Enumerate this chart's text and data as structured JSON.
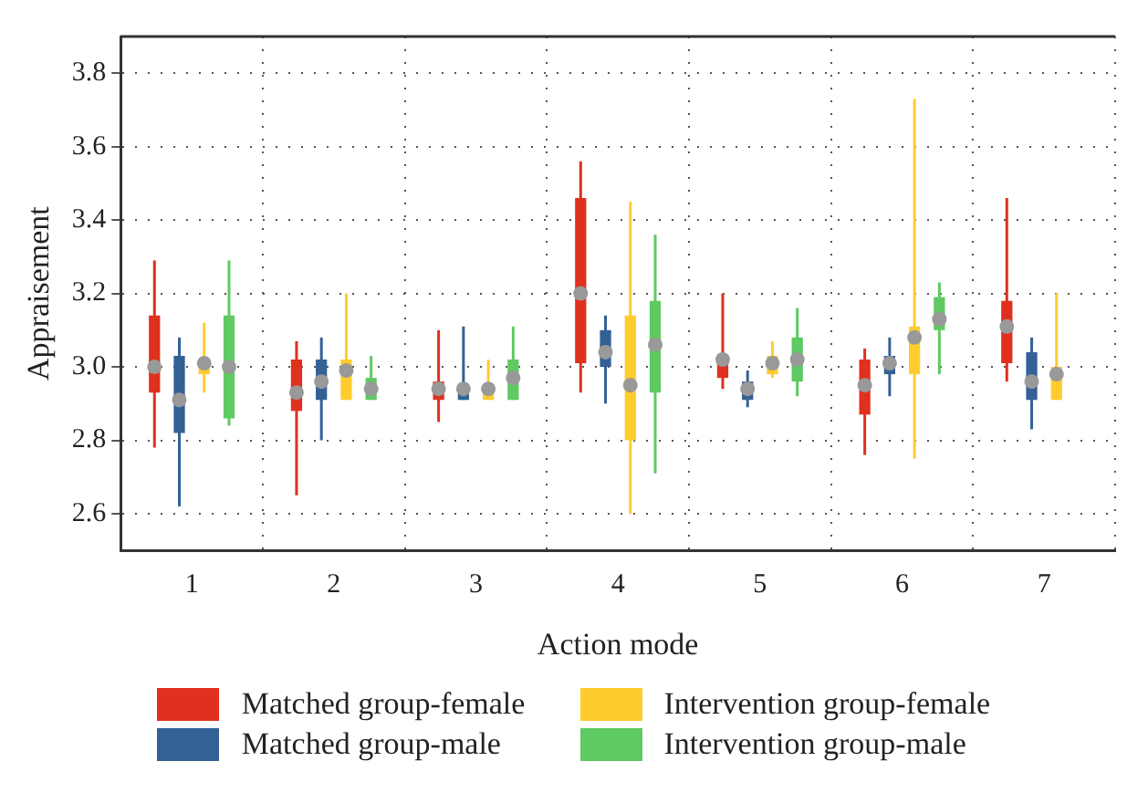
{
  "chart_data": {
    "type": "box",
    "xlabel": "Action mode",
    "ylabel": "Appraisement",
    "categories": [
      "1",
      "2",
      "3",
      "4",
      "5",
      "6",
      "7"
    ],
    "ylim": [
      2.5,
      3.9
    ],
    "yticks": [
      2.6,
      2.8,
      {
        "value": 3,
        "label": "3.0"
      },
      3.2,
      3.4,
      3.6,
      3.8
    ],
    "grid": true,
    "legend": "bottom",
    "series": [
      {
        "name": "Matched group-female",
        "color": "#e0301e",
        "boxes": [
          {
            "low": 2.78,
            "q1": 2.93,
            "median": 3.0,
            "q3": 3.14,
            "high": 3.29
          },
          {
            "low": 2.65,
            "q1": 2.88,
            "median": 2.93,
            "q3": 3.02,
            "high": 3.07
          },
          {
            "low": 2.85,
            "q1": 2.91,
            "median": 2.94,
            "q3": 2.96,
            "high": 3.1
          },
          {
            "low": 2.93,
            "q1": 3.01,
            "median": 3.2,
            "q3": 3.46,
            "high": 3.56
          },
          {
            "low": 2.94,
            "q1": 2.97,
            "median": 3.02,
            "q3": 3.03,
            "high": 3.2
          },
          {
            "low": 2.76,
            "q1": 2.87,
            "median": 2.95,
            "q3": 3.02,
            "high": 3.05
          },
          {
            "low": 2.96,
            "q1": 3.01,
            "median": 3.11,
            "q3": 3.18,
            "high": 3.46
          }
        ]
      },
      {
        "name": "Matched group-male",
        "color": "#336195",
        "boxes": [
          {
            "low": 2.62,
            "q1": 2.82,
            "median": 2.91,
            "q3": 3.03,
            "high": 3.08
          },
          {
            "low": 2.8,
            "q1": 2.91,
            "median": 2.96,
            "q3": 3.02,
            "high": 3.08
          },
          {
            "low": 2.91,
            "q1": 2.91,
            "median": 2.94,
            "q3": 2.95,
            "high": 3.11
          },
          {
            "low": 2.9,
            "q1": 3.0,
            "median": 3.04,
            "q3": 3.1,
            "high": 3.14
          },
          {
            "low": 2.89,
            "q1": 2.91,
            "median": 2.94,
            "q3": 2.96,
            "high": 2.99
          },
          {
            "low": 2.92,
            "q1": 2.98,
            "median": 3.01,
            "q3": 3.03,
            "high": 3.08
          },
          {
            "low": 2.83,
            "q1": 2.91,
            "median": 2.96,
            "q3": 3.04,
            "high": 3.08
          }
        ]
      },
      {
        "name": "Intervention group-female",
        "color": "#ffcc2e",
        "boxes": [
          {
            "low": 2.93,
            "q1": 2.98,
            "median": 3.01,
            "q3": 3.02,
            "high": 3.12
          },
          {
            "low": 2.91,
            "q1": 2.91,
            "median": 2.99,
            "q3": 3.02,
            "high": 3.2
          },
          {
            "low": 2.91,
            "q1": 2.91,
            "median": 2.94,
            "q3": 2.95,
            "high": 3.02
          },
          {
            "low": 2.6,
            "q1": 2.8,
            "median": 2.95,
            "q3": 3.14,
            "high": 3.45
          },
          {
            "low": 2.97,
            "q1": 2.98,
            "median": 3.01,
            "q3": 3.03,
            "high": 3.07
          },
          {
            "low": 2.75,
            "q1": 2.98,
            "median": 3.08,
            "q3": 3.11,
            "high": 3.73
          },
          {
            "low": 2.91,
            "q1": 2.91,
            "median": 2.98,
            "q3": 3.0,
            "high": 3.2
          }
        ]
      },
      {
        "name": "Intervention group-male",
        "color": "#5fc962",
        "boxes": [
          {
            "low": 2.84,
            "q1": 2.86,
            "median": 3.0,
            "q3": 3.14,
            "high": 3.29
          },
          {
            "low": 2.91,
            "q1": 2.91,
            "median": 2.94,
            "q3": 2.97,
            "high": 3.03
          },
          {
            "low": 2.91,
            "q1": 2.91,
            "median": 2.97,
            "q3": 3.02,
            "high": 3.11
          },
          {
            "low": 2.71,
            "q1": 2.93,
            "median": 3.06,
            "q3": 3.18,
            "high": 3.36
          },
          {
            "low": 2.92,
            "q1": 2.96,
            "median": 3.02,
            "q3": 3.08,
            "high": 3.16
          },
          {
            "low": 2.98,
            "q1": 3.1,
            "median": 3.13,
            "q3": 3.19,
            "high": 3.23
          },
          null
        ]
      }
    ]
  }
}
